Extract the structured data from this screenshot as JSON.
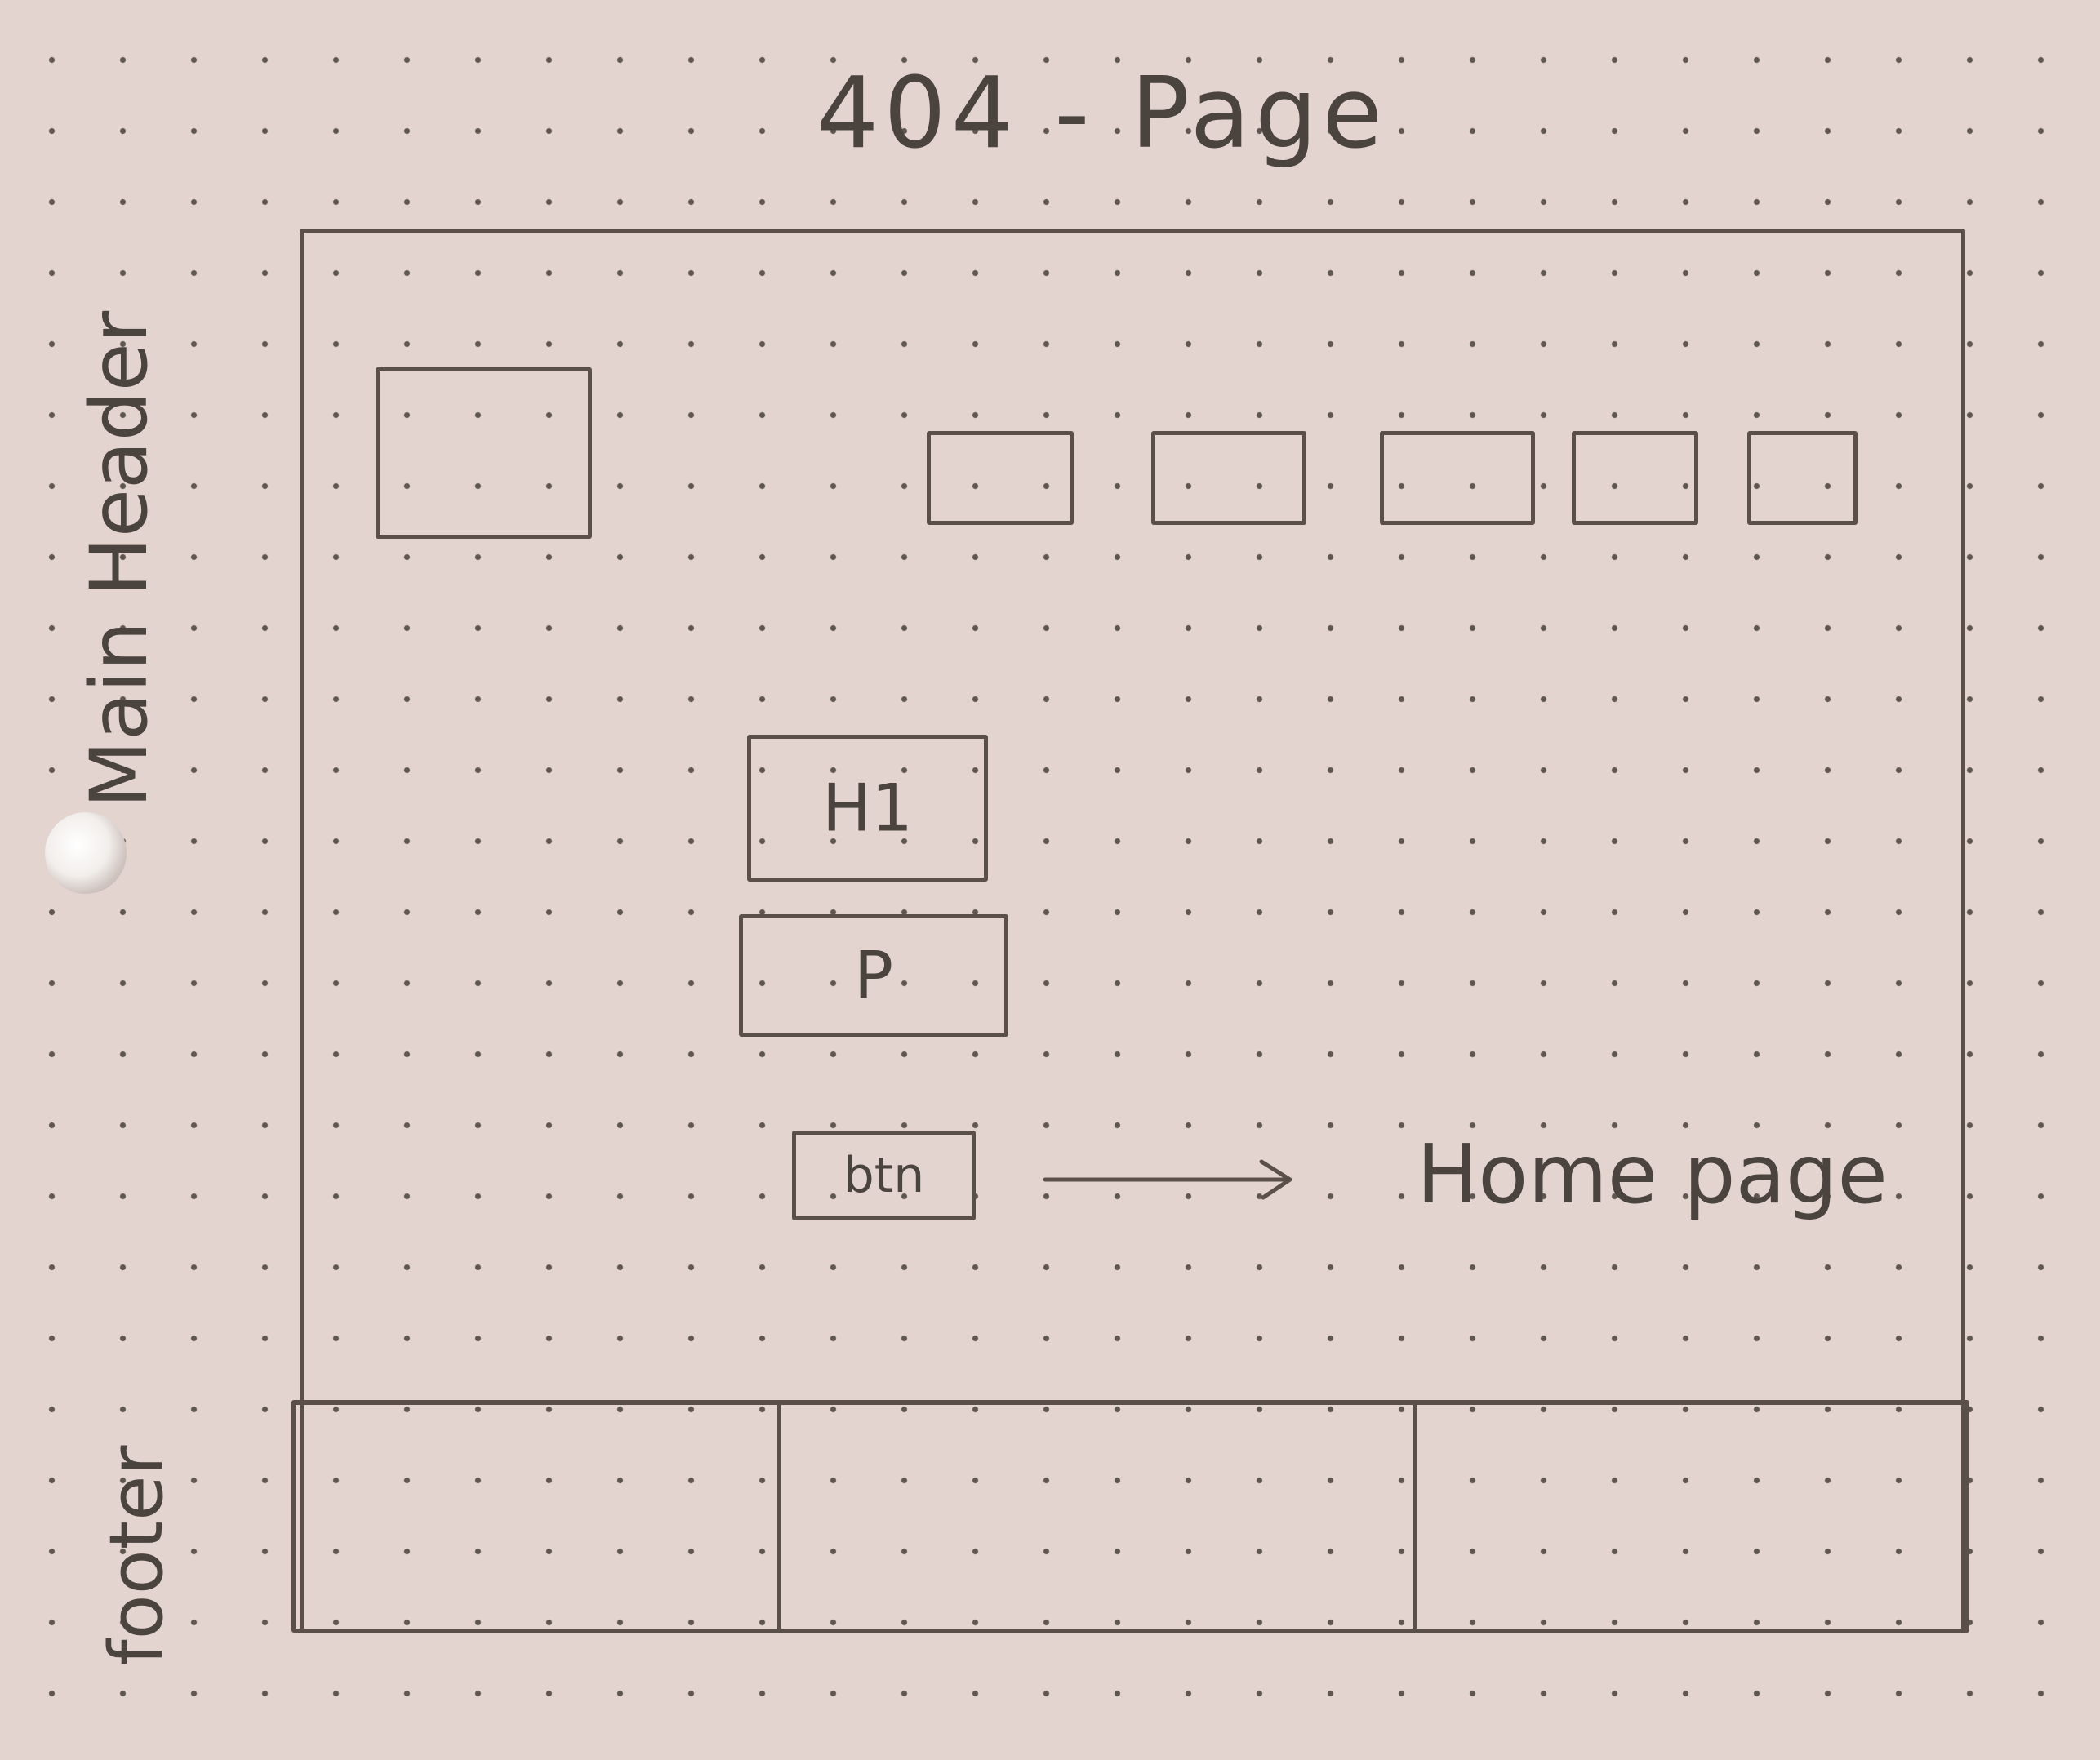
{
  "title": "404 - Page",
  "annotations": {
    "main_header": "Main Header",
    "footer": "footer",
    "button_target": "Home page"
  },
  "content_boxes": {
    "heading": "H1",
    "paragraph": "P",
    "button": "btn"
  },
  "header": {
    "logo_placeholder": "",
    "nav_items": [
      "",
      "",
      "",
      "",
      ""
    ]
  },
  "footer_columns": [
    "",
    "",
    ""
  ]
}
